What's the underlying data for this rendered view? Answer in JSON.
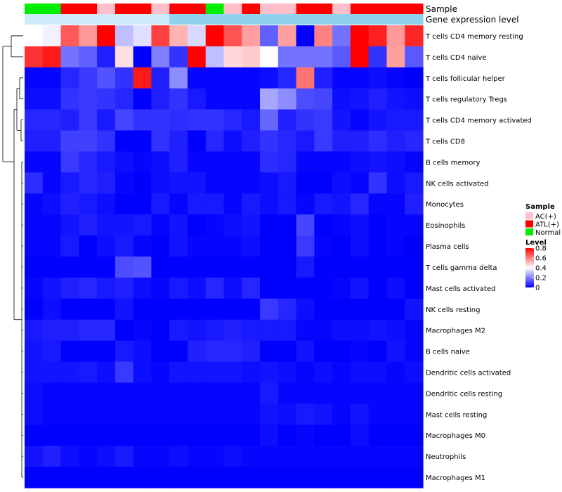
{
  "chart_data": {
    "type": "heatmap",
    "title": "",
    "annotation_labels": [
      "Sample",
      "Gene expression level"
    ],
    "row_labels": [
      "T cells CD4 memory resting",
      "T cells CD4 naive",
      "T cells follicular helper",
      "T cells regulatory  Tregs",
      "T cells CD4 memory activated",
      "T cells CD8",
      "B cells memory",
      "NK cells activated",
      "Monocytes",
      "Eosinophils",
      "Plasma cells",
      "T cells gamma delta",
      "Mast cells activated",
      "NK cells resting",
      "Macrophages M2",
      "B cells naive",
      "Dendritic cells activated",
      "Dendritic cells resting",
      "Mast cells resting",
      "Macrophages M0",
      "Neutrophils",
      "Macrophages M1"
    ],
    "sample_groups": [
      "Normal",
      "Normal",
      "ATL(+)",
      "ATL(+)",
      "AC(+)",
      "ATL(+)",
      "ATL(+)",
      "AC(+)",
      "ATL(+)",
      "ATL(+)",
      "Normal",
      "AC(+)",
      "ATL(+)",
      "AC(+)",
      "AC(+)",
      "ATL(+)",
      "ATL(+)",
      "AC(+)",
      "ATL(+)",
      "ATL(+)",
      "ATL(+)",
      "ATL(+)"
    ],
    "expression_level_colors": [
      "#cfeaf8",
      "#cfeaf8",
      "#cfeaf8",
      "#cfeaf8",
      "#cfeaf8",
      "#cfeaf8",
      "#cfeaf8",
      "#cfeaf8",
      "#8fd2ee",
      "#8fd2ee",
      "#8fd2ee",
      "#8fd2ee",
      "#8fd2ee",
      "#8fd2ee",
      "#8fd2ee",
      "#8fd2ee",
      "#8fd2ee",
      "#8fd2ee",
      "#8fd2ee",
      "#8fd2ee",
      "#8fd2ee",
      "#8fd2ee"
    ],
    "values": [
      [
        0.4,
        0.38,
        0.66,
        0.56,
        0.8,
        0.3,
        0.35,
        0.7,
        0.52,
        0.34,
        0.8,
        0.67,
        0.55,
        0.15,
        0.55,
        0.0,
        0.6,
        0.18,
        0.8,
        0.75,
        0.56,
        0.74
      ],
      [
        0.72,
        0.76,
        0.18,
        0.15,
        0.05,
        0.45,
        0.0,
        0.2,
        0.08,
        0.8,
        0.3,
        0.46,
        0.48,
        0.4,
        0.18,
        0.18,
        0.18,
        0.14,
        0.8,
        0.08,
        0.55,
        0.14
      ],
      [
        0.01,
        0.01,
        0.06,
        0.09,
        0.13,
        0.08,
        0.76,
        0.05,
        0.22,
        0.01,
        0.01,
        0.01,
        0.01,
        0.02,
        0.06,
        0.62,
        0.05,
        0.01,
        0.01,
        0.02,
        0.01,
        0.0
      ],
      [
        0.02,
        0.02,
        0.08,
        0.09,
        0.08,
        0.06,
        0.0,
        0.05,
        0.08,
        0.04,
        0.01,
        0.01,
        0.01,
        0.26,
        0.22,
        0.12,
        0.11,
        0.02,
        0.03,
        0.05,
        0.03,
        0.02
      ],
      [
        0.06,
        0.06,
        0.05,
        0.09,
        0.04,
        0.11,
        0.08,
        0.08,
        0.07,
        0.08,
        0.08,
        0.06,
        0.04,
        0.16,
        0.05,
        0.08,
        0.09,
        0.03,
        0.01,
        0.03,
        0.04,
        0.04
      ],
      [
        0.05,
        0.05,
        0.1,
        0.1,
        0.08,
        0.0,
        0.0,
        0.08,
        0.05,
        0.0,
        0.06,
        0.02,
        0.05,
        0.08,
        0.06,
        0.04,
        0.09,
        0.05,
        0.05,
        0.07,
        0.05,
        0.06
      ],
      [
        0.01,
        0.01,
        0.09,
        0.06,
        0.04,
        0.02,
        0.01,
        0.02,
        0.05,
        0.01,
        0.01,
        0.01,
        0.01,
        0.07,
        0.06,
        0.01,
        0.01,
        0.01,
        0.02,
        0.03,
        0.02,
        0.01
      ],
      [
        0.07,
        0.01,
        0.04,
        0.06,
        0.05,
        0.01,
        0.0,
        0.02,
        0.03,
        0.03,
        0.01,
        0.01,
        0.01,
        0.02,
        0.04,
        0.0,
        0.0,
        0.02,
        0.01,
        0.08,
        0.02,
        0.04
      ],
      [
        0.01,
        0.02,
        0.05,
        0.04,
        0.02,
        0.0,
        0.0,
        0.04,
        0.01,
        0.04,
        0.04,
        0.01,
        0.04,
        0.02,
        0.04,
        0.01,
        0.04,
        0.03,
        0.06,
        0.01,
        0.01,
        0.05
      ],
      [
        0.01,
        0.01,
        0.03,
        0.05,
        0.03,
        0.03,
        0.04,
        0.01,
        0.03,
        0.0,
        0.01,
        0.02,
        0.03,
        0.0,
        0.0,
        0.11,
        0.0,
        0.01,
        0.02,
        0.0,
        0.01,
        0.01
      ],
      [
        0.01,
        0.01,
        0.04,
        0.0,
        0.02,
        0.04,
        0.01,
        0.0,
        0.03,
        0.01,
        0.01,
        0.01,
        0.02,
        0.0,
        0.0,
        0.09,
        0.01,
        0.0,
        0.02,
        0.0,
        0.01,
        0.0
      ],
      [
        0.0,
        0.0,
        0.0,
        0.0,
        0.0,
        0.12,
        0.13,
        0.0,
        0.0,
        0.0,
        0.0,
        0.0,
        0.0,
        0.0,
        0.0,
        0.04,
        0.0,
        0.0,
        0.0,
        0.0,
        0.0,
        0.0
      ],
      [
        0.01,
        0.03,
        0.05,
        0.06,
        0.04,
        0.05,
        0.02,
        0.01,
        0.04,
        0.02,
        0.06,
        0.02,
        0.06,
        0.0,
        0.0,
        0.0,
        0.0,
        0.01,
        0.03,
        0.0,
        0.02,
        0.0
      ],
      [
        0.0,
        0.02,
        0.0,
        0.0,
        0.0,
        0.03,
        0.0,
        0.0,
        0.0,
        0.0,
        0.0,
        0.0,
        0.0,
        0.09,
        0.06,
        0.02,
        0.0,
        0.0,
        0.0,
        0.0,
        0.0,
        0.03
      ],
      [
        0.04,
        0.05,
        0.05,
        0.06,
        0.06,
        0.0,
        0.01,
        0.0,
        0.04,
        0.03,
        0.04,
        0.05,
        0.04,
        0.04,
        0.04,
        0.01,
        0.01,
        0.02,
        0.02,
        0.03,
        0.02,
        0.01
      ],
      [
        0.03,
        0.04,
        0.0,
        0.0,
        0.0,
        0.04,
        0.02,
        0.0,
        0.0,
        0.05,
        0.06,
        0.06,
        0.05,
        0.0,
        0.0,
        0.03,
        0.0,
        0.0,
        0.01,
        0.0,
        0.03,
        0.01
      ],
      [
        0.03,
        0.03,
        0.03,
        0.04,
        0.02,
        0.09,
        0.02,
        0.01,
        0.03,
        0.03,
        0.03,
        0.03,
        0.02,
        0.03,
        0.02,
        0.01,
        0.02,
        0.01,
        0.02,
        0.02,
        0.01,
        0.02
      ],
      [
        0.02,
        0.01,
        0.01,
        0.01,
        0.01,
        0.01,
        0.01,
        0.01,
        0.01,
        0.01,
        0.01,
        0.01,
        0.01,
        0.04,
        0.01,
        0.01,
        0.01,
        0.01,
        0.01,
        0.01,
        0.01,
        0.01
      ],
      [
        0.02,
        0.01,
        0.01,
        0.01,
        0.01,
        0.01,
        0.01,
        0.01,
        0.01,
        0.01,
        0.01,
        0.01,
        0.01,
        0.03,
        0.02,
        0.04,
        0.03,
        0.01,
        0.03,
        0.01,
        0.01,
        0.01
      ],
      [
        0.0,
        0.0,
        0.0,
        0.0,
        0.0,
        0.0,
        0.0,
        0.0,
        0.0,
        0.0,
        0.0,
        0.0,
        0.0,
        0.02,
        0.0,
        0.01,
        0.0,
        0.0,
        0.02,
        0.0,
        0.0,
        0.0
      ],
      [
        0.03,
        0.05,
        0.02,
        0.01,
        0.02,
        0.04,
        0.01,
        0.01,
        0.02,
        0.01,
        0.01,
        0.02,
        0.01,
        0.01,
        0.01,
        0.01,
        0.01,
        0.01,
        0.01,
        0.01,
        0.01,
        0.01
      ],
      [
        0.0,
        0.0,
        0.0,
        0.0,
        0.0,
        0.0,
        0.0,
        0.0,
        0.0,
        0.0,
        0.0,
        0.0,
        0.0,
        0.0,
        0.0,
        0.0,
        0.0,
        0.0,
        0.0,
        0.0,
        0.0,
        0.0
      ]
    ],
    "color_scale": {
      "min": 0,
      "max": 0.8,
      "colors": [
        "#0000ff",
        "#ffffff",
        "#ff0000"
      ]
    },
    "legend": {
      "sample_title": "Sample",
      "sample_items": [
        {
          "label": "AC(+)",
          "color": "#ffc0cb"
        },
        {
          "label": "ATL(+)",
          "color": "#ff0000"
        },
        {
          "label": "Normal",
          "color": "#00ee00"
        }
      ],
      "level_title": "Level",
      "level_ticks": [
        "0.8",
        "0.6",
        "0.4",
        "0.2",
        "0"
      ],
      "level_tick_values": [
        0.8,
        0.6,
        0.4,
        0.2,
        0
      ]
    },
    "dendrogram": "hierarchical row clustering",
    "legend_position": "right"
  }
}
